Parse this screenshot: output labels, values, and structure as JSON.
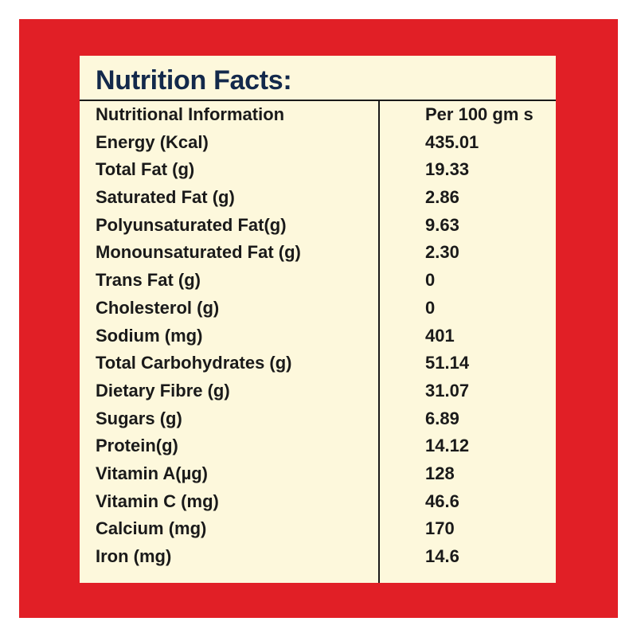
{
  "colors": {
    "frame": "#e11f26",
    "panel": "#fdf8dc",
    "title": "#13294b",
    "text": "#1a1a1a"
  },
  "title": "Nutrition Facts:",
  "header": {
    "label": "Nutritional Information",
    "value": "Per 100 gm s"
  },
  "rows": [
    {
      "label": "Energy (Kcal)",
      "value": "435.01"
    },
    {
      "label": "Total Fat (g)",
      "value": "19.33"
    },
    {
      "label": "Saturated Fat (g)",
      "value": "2.86"
    },
    {
      "label": "Polyunsaturated Fat(g)",
      "value": "9.63"
    },
    {
      "label": "Monounsaturated Fat (g)",
      "value": "2.30"
    },
    {
      "label": "Trans Fat (g)",
      "value": "0"
    },
    {
      "label": "Cholesterol (g)",
      "value": "0"
    },
    {
      "label": "Sodium (mg)",
      "value": "401"
    },
    {
      "label": "Total Carbohydrates (g)",
      "value": "51.14"
    },
    {
      "label": "Dietary Fibre (g)",
      "value": "31.07"
    },
    {
      "label": "Sugars (g)",
      "value": "6.89"
    },
    {
      "label": "Protein(g)",
      "value": "14.12"
    },
    {
      "label": "Vitamin A(µg)",
      "value": "128"
    },
    {
      "label": "Vitamin C (mg)",
      "value": "46.6"
    },
    {
      "label": "Calcium (mg)",
      "value": "170"
    },
    {
      "label": "Iron (mg)",
      "value": "14.6"
    }
  ]
}
